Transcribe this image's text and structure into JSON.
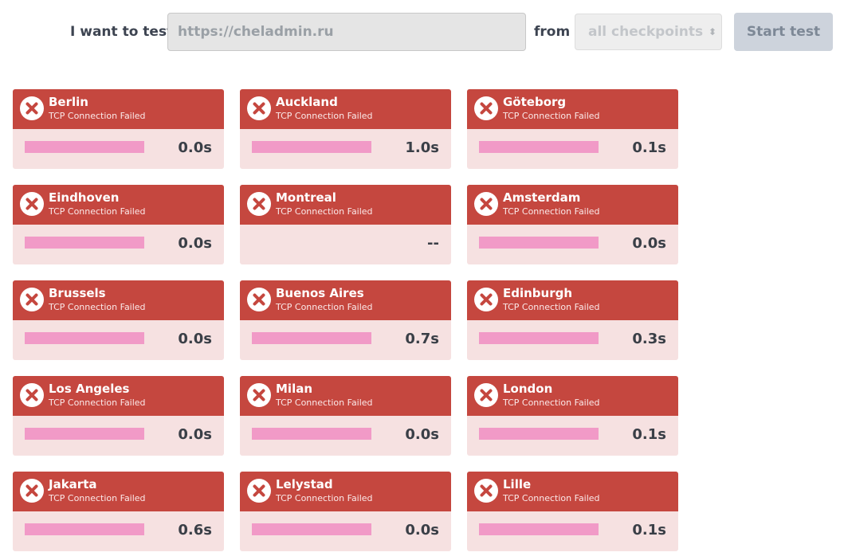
{
  "form": {
    "label_test": "I want to test",
    "url_value": "https://cheladmin.ru",
    "label_from": "from",
    "checkpoint_selected": "all checkpoints",
    "start_label": "Start test"
  },
  "colors": {
    "card_header": "#c5473f",
    "card_body": "#f6e1e1",
    "bar": "#f19ac7"
  },
  "cards": [
    {
      "city": "Berlin",
      "status": "TCP Connection Failed",
      "time": "0.0s",
      "bar_fraction": 1
    },
    {
      "city": "Auckland",
      "status": "TCP Connection Failed",
      "time": "1.0s",
      "bar_fraction": 1
    },
    {
      "city": "Göteborg",
      "status": "TCP Connection Failed",
      "time": "0.1s",
      "bar_fraction": 1
    },
    {
      "city": "Eindhoven",
      "status": "TCP Connection Failed",
      "time": "0.0s",
      "bar_fraction": 1
    },
    {
      "city": "Montreal",
      "status": "TCP Connection Failed",
      "time": "--",
      "bar_fraction": 0
    },
    {
      "city": "Amsterdam",
      "status": "TCP Connection Failed",
      "time": "0.0s",
      "bar_fraction": 1
    },
    {
      "city": "Brussels",
      "status": "TCP Connection Failed",
      "time": "0.0s",
      "bar_fraction": 1
    },
    {
      "city": "Buenos Aires",
      "status": "TCP Connection Failed",
      "time": "0.7s",
      "bar_fraction": 1
    },
    {
      "city": "Edinburgh",
      "status": "TCP Connection Failed",
      "time": "0.3s",
      "bar_fraction": 1
    },
    {
      "city": "Los Angeles",
      "status": "TCP Connection Failed",
      "time": "0.0s",
      "bar_fraction": 1
    },
    {
      "city": "Milan",
      "status": "TCP Connection Failed",
      "time": "0.0s",
      "bar_fraction": 1
    },
    {
      "city": "London",
      "status": "TCP Connection Failed",
      "time": "0.1s",
      "bar_fraction": 1
    },
    {
      "city": "Jakarta",
      "status": "TCP Connection Failed",
      "time": "0.6s",
      "bar_fraction": 1
    },
    {
      "city": "Lelystad",
      "status": "TCP Connection Failed",
      "time": "0.0s",
      "bar_fraction": 1
    },
    {
      "city": "Lille",
      "status": "TCP Connection Failed",
      "time": "0.1s",
      "bar_fraction": 1
    }
  ]
}
